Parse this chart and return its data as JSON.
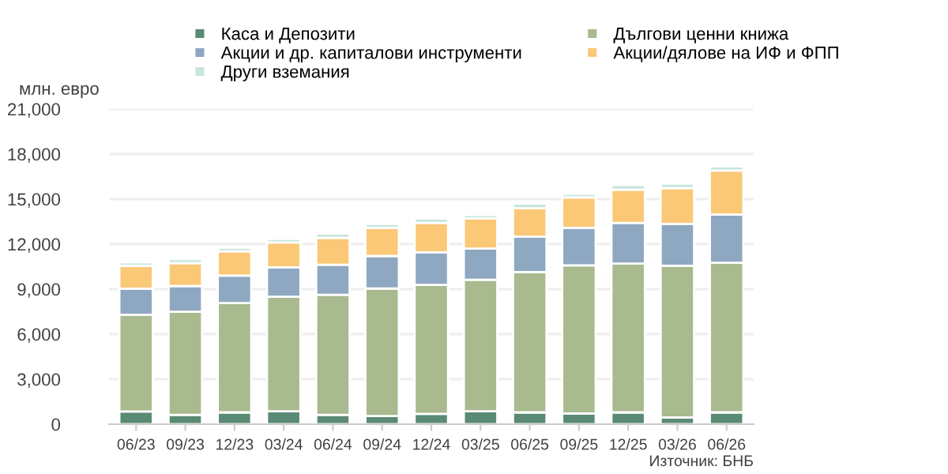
{
  "chart_data": {
    "type": "bar",
    "stacked": true,
    "ylabel": "млн. евро",
    "categories": [
      "06/23",
      "09/23",
      "12/23",
      "03/24",
      "06/24",
      "09/24",
      "12/24",
      "03/25",
      "06/25",
      "09/25",
      "12/25",
      "03/26",
      "06/26"
    ],
    "series": [
      {
        "name": "Каса и Депозити",
        "color": "#5a8a74",
        "values": [
          850,
          620,
          790,
          860,
          620,
          550,
          690,
          860,
          790,
          720,
          790,
          450,
          790
        ]
      },
      {
        "name": "Дългови ценни книжа",
        "color": "#a8ba8e",
        "values": [
          6450,
          6870,
          7280,
          7630,
          8000,
          8490,
          8590,
          8770,
          9350,
          9870,
          9910,
          10110,
          9970
        ]
      },
      {
        "name": "Акции и др. капиталови инструменти",
        "color": "#8fa8c2",
        "values": [
          1730,
          1720,
          1830,
          1960,
          2010,
          2170,
          2170,
          2070,
          2350,
          2490,
          2720,
          2790,
          3210
        ]
      },
      {
        "name": "Акции/дялове на ИФ и ФПП",
        "color": "#fbc877",
        "values": [
          1520,
          1520,
          1620,
          1660,
          1790,
          1870,
          1970,
          2000,
          1900,
          2030,
          2210,
          2380,
          2930
        ]
      },
      {
        "name": "Други вземания",
        "color": "#c8e6dc",
        "values": [
          240,
          280,
          240,
          240,
          280,
          270,
          280,
          240,
          310,
          240,
          310,
          310,
          280
        ]
      }
    ],
    "ylim": [
      0,
      21000
    ],
    "yticks": [
      {
        "value": 0,
        "label": "0"
      },
      {
        "value": 3000,
        "label": "3,000"
      },
      {
        "value": 6000,
        "label": "6,000"
      },
      {
        "value": 9000,
        "label": "9,000"
      },
      {
        "value": 12000,
        "label": "12,000"
      },
      {
        "value": 15000,
        "label": "15,000"
      },
      {
        "value": 18000,
        "label": "18,000"
      },
      {
        "value": 21000,
        "label": "21,000"
      }
    ],
    "grid": "y",
    "legend": "top",
    "marker": "square",
    "annotations": [
      "Източник: БНБ"
    ]
  }
}
